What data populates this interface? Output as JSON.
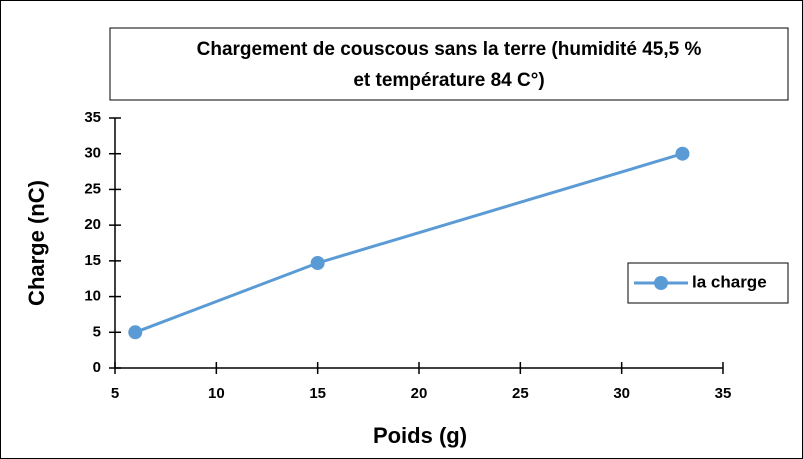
{
  "chart_data": {
    "type": "line",
    "title": [
      "Chargement de couscous sans la terre (humidité 45,5 %",
      "et température 84 C°)"
    ],
    "x_label": "Poids (g)",
    "y_label": "Charge (nC)",
    "x": [
      6,
      15,
      33
    ],
    "series": [
      {
        "name": "la charge",
        "color": "#5b9bd5",
        "values": [
          5,
          14.7,
          30
        ]
      }
    ],
    "xlim": [
      5,
      35
    ],
    "xticks": [
      5,
      10,
      15,
      20,
      25,
      30,
      35
    ],
    "ylim": [
      0,
      35
    ],
    "yticks": [
      0,
      5,
      10,
      15,
      20,
      25,
      30,
      35
    ],
    "legend": "right"
  }
}
